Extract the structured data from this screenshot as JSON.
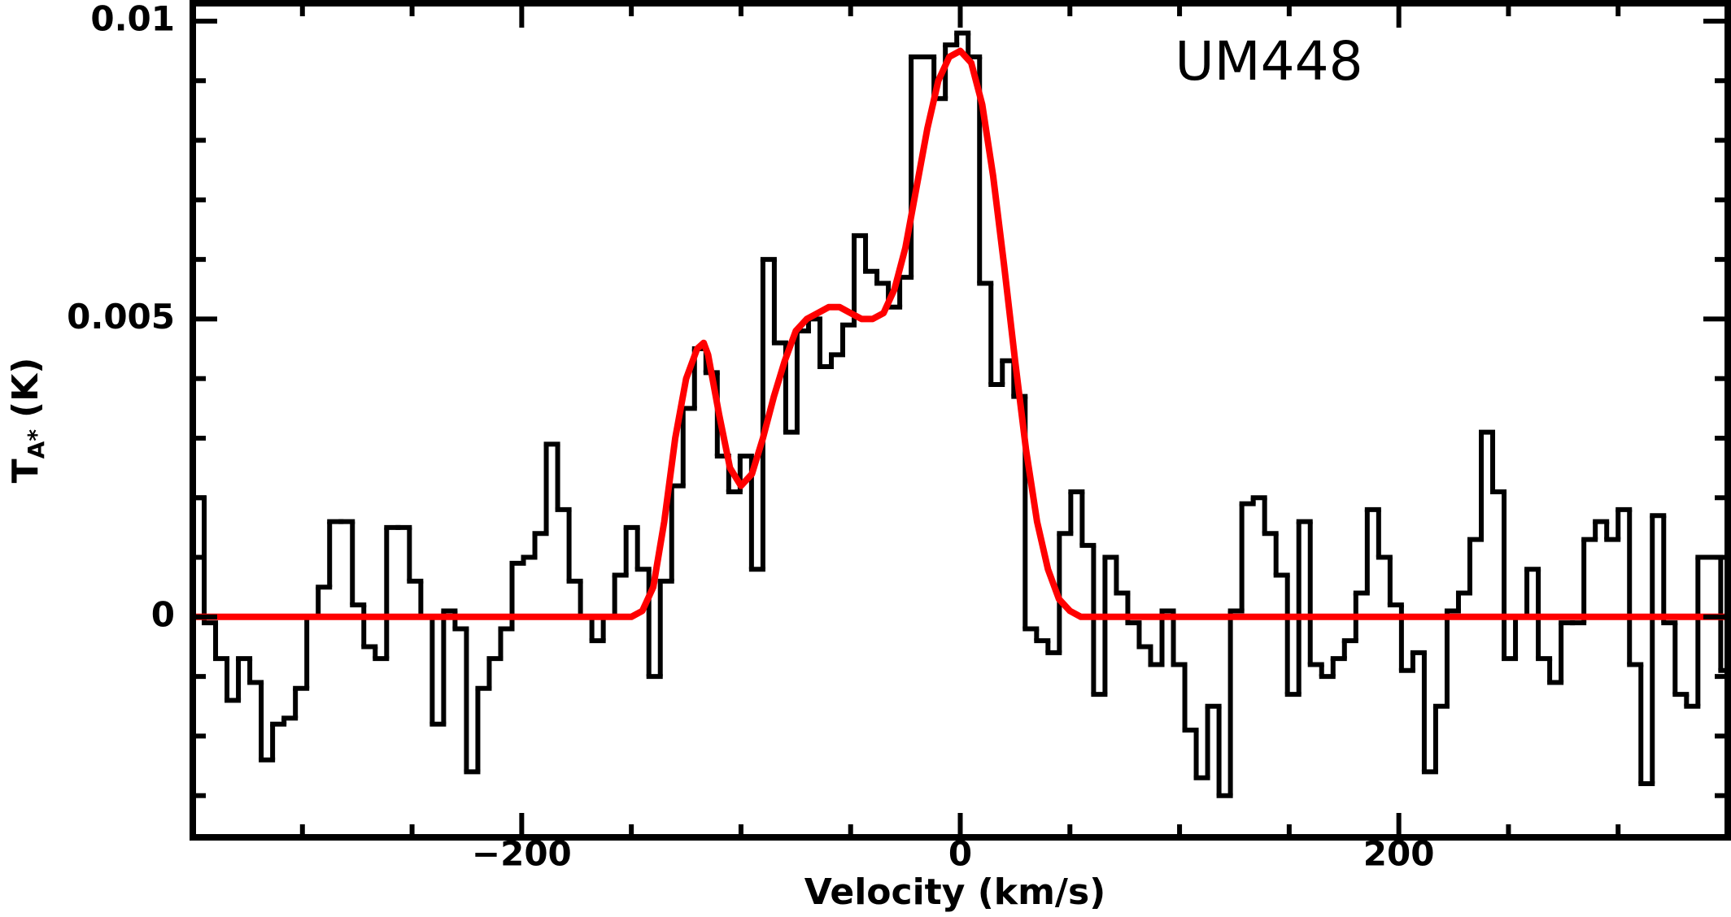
{
  "chart_data": {
    "type": "step",
    "title": "UM448",
    "xlabel": "Velocity (km/s)",
    "ylabel": [
      "T",
      "A*",
      "(K)"
    ],
    "xlim": [
      -350,
      350
    ],
    "ylim": [
      -0.0037,
      0.0103
    ],
    "xticks": [
      {
        "value": -200,
        "label": "−200"
      },
      0,
      200
    ],
    "xminorticks": [
      -300,
      -250,
      -150,
      -100,
      -50,
      50,
      100,
      150,
      250,
      300
    ],
    "yticks": [
      0,
      0.005,
      0.01
    ],
    "yminorticks": [
      -0.003,
      -0.002,
      -0.001,
      0.001,
      0.002,
      0.003,
      0.004,
      0.006,
      0.007,
      0.008,
      0.009
    ],
    "spectrum": {
      "color": "#000000",
      "bins": [
        -350,
        -344.8,
        -339.6,
        -334.4,
        -329.2,
        -324,
        -318.8,
        -313.6,
        -308.4,
        -303.2,
        -298,
        -292.8,
        -287.6,
        -282.4,
        -277.2,
        -272,
        -266.8,
        -261.6,
        -256.4,
        -251.2,
        -246,
        -240.8,
        -235.6,
        -230.4,
        -225.2,
        -220,
        -214.8,
        -209.6,
        -204.4,
        -199.2,
        -194,
        -188.8,
        -183.6,
        -178.4,
        -173.2,
        -168,
        -162.8,
        -157.6,
        -152.4,
        -147.2,
        -142,
        -136.8,
        -131.6,
        -126.4,
        -121.2,
        -116,
        -110.8,
        -105.6,
        -100.4,
        -95.2,
        -90,
        -84.8,
        -79.6,
        -74.4,
        -69.2,
        -64,
        -58.8,
        -53.6,
        -48.4,
        -43.2,
        -38,
        -32.8,
        -27.6,
        -22.4,
        -17.2,
        -12,
        -6.8,
        -1.6,
        3.6,
        8.8,
        14,
        19.2,
        24.4,
        29.6,
        34.8,
        40,
        45.2,
        50.4,
        55.6,
        60.8,
        66,
        71.2,
        76.4,
        81.6,
        86.8,
        92,
        97.2,
        102.4,
        107.6,
        112.8,
        118,
        123.2,
        128.4,
        133.6,
        138.8,
        144,
        149.2,
        154.4,
        159.6,
        164.8,
        170,
        175.2,
        180.4,
        185.6,
        190.8,
        196,
        201.2,
        206.4,
        211.6,
        216.8,
        222,
        227.2,
        232.4,
        237.6,
        242.8,
        248,
        253.2,
        258.4,
        263.6,
        268.8,
        274,
        279.2,
        284.4,
        289.6,
        294.8,
        300,
        305.2,
        310.4,
        315.6,
        320.8,
        326,
        331.2,
        336.4,
        341.6,
        346.8,
        352
      ],
      "values": [
        0.002,
        -0.0001,
        -0.0007,
        -0.0014,
        -0.0007,
        -0.0011,
        -0.0024,
        -0.0018,
        -0.0017,
        -0.0012,
        0,
        0.0005,
        0.0016,
        0.0016,
        0.0002,
        -0.0005,
        -0.0007,
        0.0015,
        0.0015,
        0.0006,
        0,
        -0.0018,
        0.0001,
        -0.0002,
        -0.0026,
        -0.0012,
        -0.0007,
        -0.0002,
        0.0009,
        0.001,
        0.0014,
        0.0029,
        0.0018,
        0.0006,
        0,
        -0.0004,
        0,
        0.0007,
        0.0015,
        0.0008,
        -0.001,
        0.0006,
        0.0022,
        0.0035,
        0.0045,
        0.0041,
        0.0027,
        0.0021,
        0.0027,
        0.0008,
        0.006,
        0.0046,
        0.0031,
        0.0048,
        0.005,
        0.0042,
        0.0044,
        0.0049,
        0.0064,
        0.0058,
        0.0056,
        0.0052,
        0.0057,
        0.0094,
        0.0094,
        0.0087,
        0.0096,
        0.0098,
        0.0094,
        0.0056,
        0.0039,
        0.0043,
        0.0037,
        -0.0002,
        -0.0004,
        -0.0006,
        0.0014,
        0.0021,
        0.0012,
        -0.0013,
        0.001,
        0.0004,
        -0.0001,
        -0.0005,
        -0.0008,
        0.0001,
        -0.0008,
        -0.0019,
        -0.0027,
        -0.0015,
        -0.003,
        0.0001,
        0.0019,
        0.002,
        0.0014,
        0.0007,
        -0.0013,
        0.0016,
        -0.0008,
        -0.001,
        -0.0007,
        -0.0004,
        0.0004,
        0.0018,
        0.001,
        0.0002,
        -0.0009,
        -0.0006,
        -0.0026,
        -0.0015,
        0.0001,
        0.0004,
        0.0013,
        0.0031,
        0.0021,
        -0.0007,
        0,
        0.0008,
        -0.0007,
        -0.0011,
        -0.0001,
        -0.0001,
        0.0013,
        0.0016,
        0.0013,
        0.0018,
        -0.0008,
        -0.0028,
        0.0017,
        -0.0001,
        -0.0013,
        -0.0015,
        0.001,
        0.001,
        -0.0009
      ]
    },
    "fit": {
      "color": "#ff0000",
      "x": [
        -350,
        -150,
        -145,
        -140,
        -135,
        -130,
        -125,
        -120,
        -117,
        -115,
        -110,
        -105,
        -100,
        -95,
        -90,
        -85,
        -80,
        -75,
        -70,
        -65,
        -60,
        -55,
        -50,
        -45,
        -40,
        -35,
        -30,
        -25,
        -20,
        -15,
        -10,
        -5,
        0,
        5,
        10,
        15,
        20,
        25,
        30,
        35,
        40,
        45,
        50,
        55,
        60,
        350
      ],
      "values": [
        0,
        0,
        0.0001,
        0.0005,
        0.0016,
        0.003,
        0.004,
        0.0045,
        0.0046,
        0.0044,
        0.0034,
        0.0025,
        0.0022,
        0.0024,
        0.003,
        0.0037,
        0.0043,
        0.0048,
        0.005,
        0.0051,
        0.0052,
        0.0052,
        0.0051,
        0.005,
        0.005,
        0.0051,
        0.0055,
        0.0062,
        0.0072,
        0.0082,
        0.009,
        0.0094,
        0.0095,
        0.0093,
        0.0086,
        0.0074,
        0.0059,
        0.0043,
        0.0028,
        0.0016,
        0.0008,
        0.0003,
        0.0001,
        0,
        0,
        0
      ]
    }
  }
}
